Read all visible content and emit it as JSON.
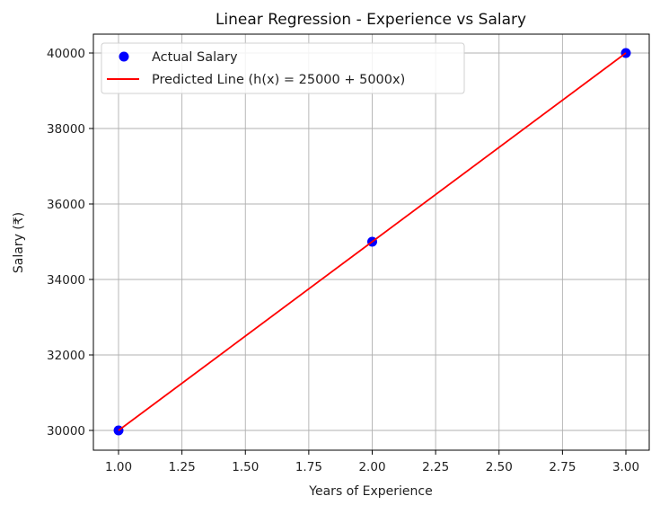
{
  "chart_data": {
    "type": "scatter+line",
    "title": "Linear Regression - Experience vs Salary",
    "xlabel": "Years of Experience",
    "ylabel": "Salary (₹)",
    "xlim": [
      0.9,
      3.1
    ],
    "ylim": [
      29500,
      40500
    ],
    "grid": true,
    "legend_position": "upper left",
    "x_ticks": [
      "1.00",
      "1.25",
      "1.50",
      "1.75",
      "2.00",
      "2.25",
      "2.50",
      "2.75",
      "3.00"
    ],
    "y_ticks": [
      "30000",
      "32000",
      "34000",
      "36000",
      "38000",
      "40000"
    ],
    "series": [
      {
        "name": "Actual Salary",
        "type": "scatter",
        "color": "#0000ff",
        "x": [
          1,
          2,
          3
        ],
        "y": [
          30000,
          35000,
          40000
        ]
      },
      {
        "name": "Predicted Line (h(x) = 25000 + 5000x)",
        "type": "line",
        "color": "#ff0000",
        "x": [
          1,
          2,
          3
        ],
        "y": [
          30000,
          35000,
          40000
        ]
      }
    ]
  },
  "legend": {
    "items": [
      {
        "label": "Actual Salary"
      },
      {
        "label": "Predicted Line (h(x) = 25000 + 5000x)"
      }
    ]
  }
}
